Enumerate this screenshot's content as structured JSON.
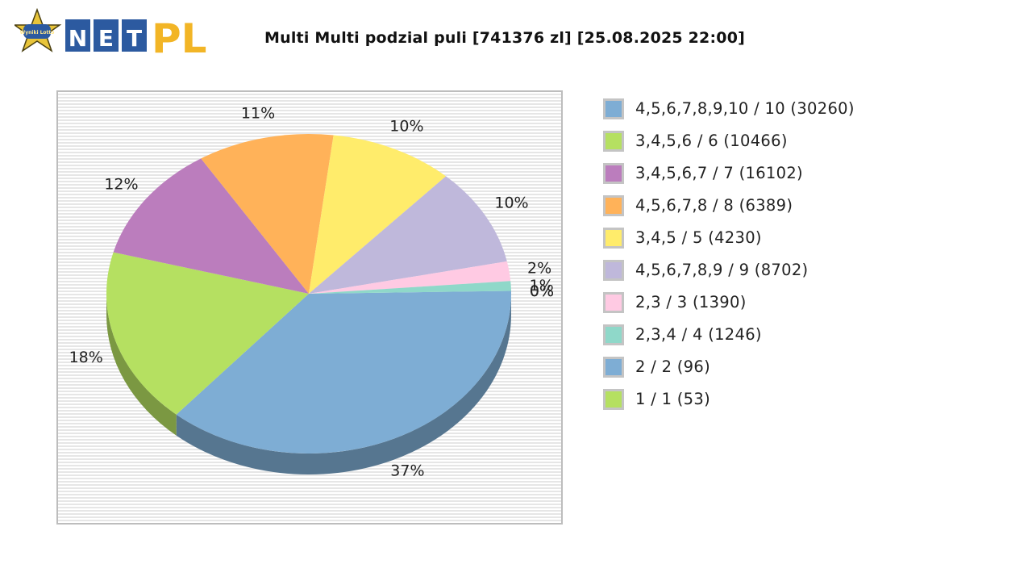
{
  "logo": {
    "badge_text": "Wyniki Lotto",
    "word_net": "NET",
    "word_pl": "PL"
  },
  "chart_data": {
    "type": "pie",
    "title": "Multi Multi podzial puli [741376 zl] [25.08.2025 22:00]",
    "categories": [
      "4,5,6,7,8,9,10 / 10 (30260)",
      "3,4,5,6 / 6 (10466)",
      "3,4,5,6,7 / 7 (16102)",
      "4,5,6,7,8 / 8 (6389)",
      "3,4,5 / 5 (4230)",
      "4,5,6,7,8,9 / 9 (8702)",
      "2,3 / 3 (1390)",
      "2,3,4 / 4 (1246)",
      "2 / 2 (96)",
      "1 / 1 (53)"
    ],
    "values": [
      37,
      18,
      12,
      11,
      10,
      10,
      2,
      1,
      0,
      0
    ],
    "value_labels": [
      "37%",
      "18%",
      "12%",
      "11%",
      "10%",
      "10%",
      "2%",
      "1%",
      "0%",
      "0%"
    ],
    "colors": [
      "#7eadd4",
      "#b5e061",
      "#bb7dbd",
      "#ffb259",
      "#ffec6b",
      "#bfb8db",
      "#ffcae3",
      "#8fd8c9",
      "#7eadd4",
      "#b5e061"
    ],
    "legend_position": "right",
    "grid": false
  }
}
